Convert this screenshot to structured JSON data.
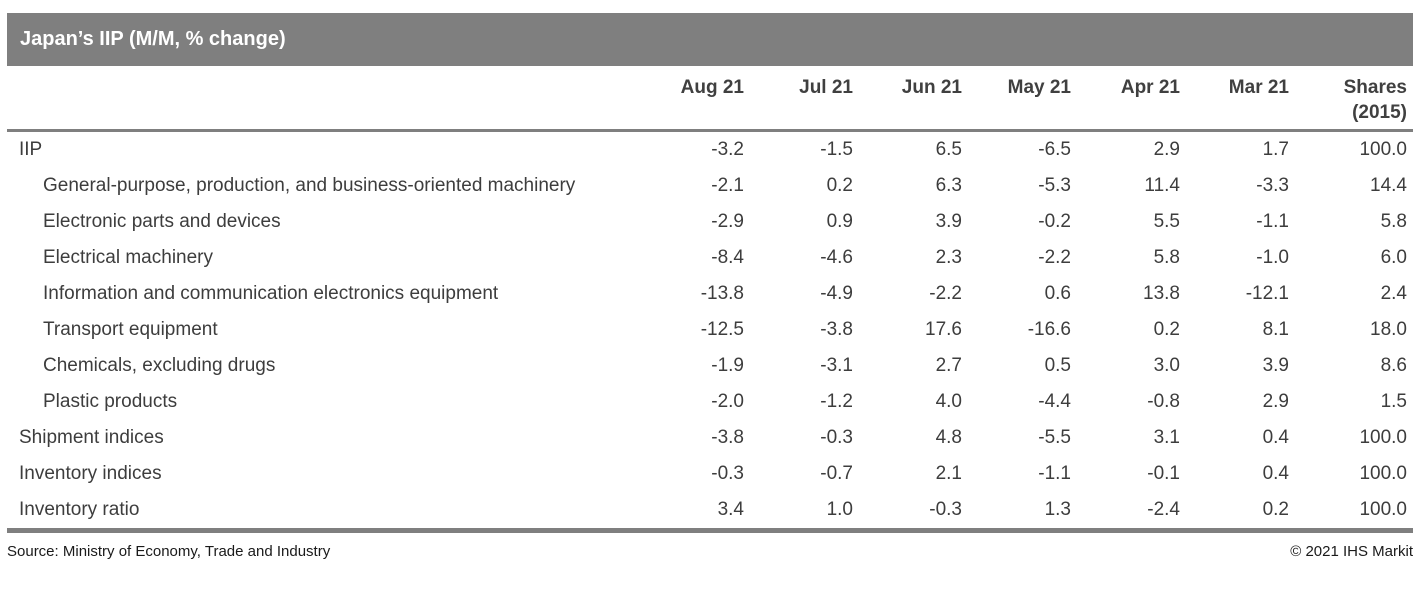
{
  "chart_data": {
    "type": "table",
    "title": "Japan’s IIP (M/M, % change)",
    "columns": [
      "Aug 21",
      "Jul 21",
      "Jun 21",
      "May 21",
      "Apr 21",
      "Mar 21"
    ],
    "shares_header": {
      "line1": "Shares",
      "line2": "(2015)"
    },
    "rows": [
      {
        "label": "IIP",
        "indent": 0,
        "values": [
          "-3.2",
          "-1.5",
          "6.5",
          "-6.5",
          "2.9",
          "1.7",
          "100.0"
        ]
      },
      {
        "label": "General-purpose, production, and business-oriented machinery",
        "indent": 1,
        "values": [
          "-2.1",
          "0.2",
          "6.3",
          "-5.3",
          "11.4",
          "-3.3",
          "14.4"
        ]
      },
      {
        "label": "Electronic parts and devices",
        "indent": 1,
        "values": [
          "-2.9",
          "0.9",
          "3.9",
          "-0.2",
          "5.5",
          "-1.1",
          "5.8"
        ]
      },
      {
        "label": "Electrical machinery",
        "indent": 1,
        "values": [
          "-8.4",
          "-4.6",
          "2.3",
          "-2.2",
          "5.8",
          "-1.0",
          "6.0"
        ]
      },
      {
        "label": "Information and communication electronics equipment",
        "indent": 1,
        "values": [
          "-13.8",
          "-4.9",
          "-2.2",
          "0.6",
          "13.8",
          "-12.1",
          "2.4"
        ]
      },
      {
        "label": "Transport equipment",
        "indent": 1,
        "values": [
          "-12.5",
          "-3.8",
          "17.6",
          "-16.6",
          "0.2",
          "8.1",
          "18.0"
        ]
      },
      {
        "label": "Chemicals, excluding drugs",
        "indent": 1,
        "values": [
          "-1.9",
          "-3.1",
          "2.7",
          "0.5",
          "3.0",
          "3.9",
          "8.6"
        ]
      },
      {
        "label": "Plastic products",
        "indent": 1,
        "values": [
          "-2.0",
          "-1.2",
          "4.0",
          "-4.4",
          "-0.8",
          "2.9",
          "1.5"
        ]
      },
      {
        "label": "Shipment indices",
        "indent": 0,
        "values": [
          "-3.8",
          "-0.3",
          "4.8",
          "-5.5",
          "3.1",
          "0.4",
          "100.0"
        ]
      },
      {
        "label": "Inventory indices",
        "indent": 0,
        "values": [
          "-0.3",
          "-0.7",
          "2.1",
          "-1.1",
          "-0.1",
          "0.4",
          "100.0"
        ]
      },
      {
        "label": "Inventory ratio",
        "indent": 0,
        "values": [
          "3.4",
          "1.0",
          "-0.3",
          "1.3",
          "-2.4",
          "0.2",
          "100.0"
        ]
      }
    ],
    "layout": {
      "grid": "off",
      "header_rule": true,
      "bottom_rule": true,
      "value_alignment": "right"
    }
  },
  "footer": {
    "source": "Source: Ministry of Economy, Trade and Industry",
    "copyright": "© 2021 IHS Markit"
  },
  "colors": {
    "title_bar": "#7f7f7f",
    "rule": "#7f7f7f",
    "title_text": "#ffffff",
    "body_text": "#3d3d3d",
    "header_text": "#404040",
    "background": "#ffffff"
  }
}
